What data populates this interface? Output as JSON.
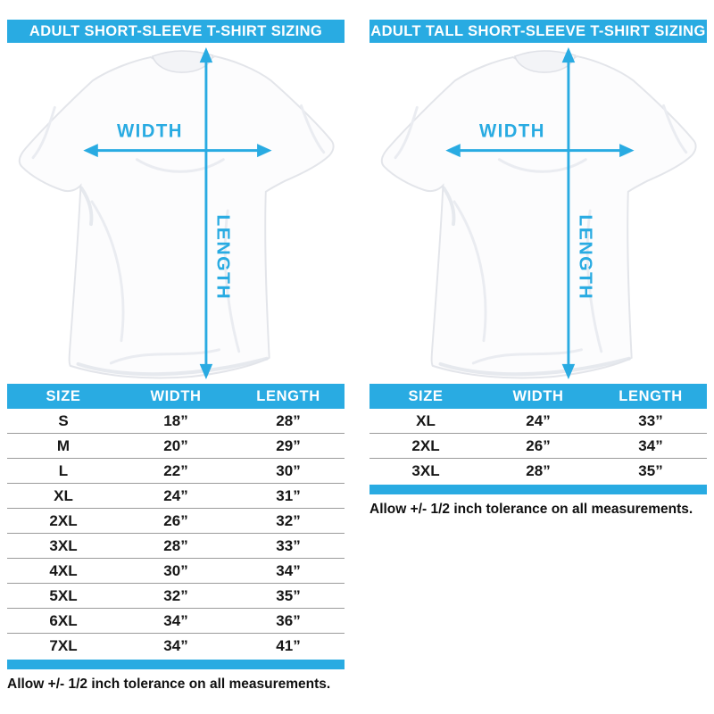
{
  "page": {
    "accent_blue": "#29abe2",
    "background": "#ffffff"
  },
  "panels": [
    {
      "title": "ADULT SHORT-SLEEVE T-SHIRT SIZING",
      "diagram": {
        "width_label": "WIDTH",
        "length_label": "LENGTH"
      },
      "table": {
        "columns": [
          "SIZE",
          "WIDTH",
          "LENGTH"
        ],
        "rows": [
          [
            "S",
            "18”",
            "28”"
          ],
          [
            "M",
            "20”",
            "29”"
          ],
          [
            "L",
            "22”",
            "30”"
          ],
          [
            "XL",
            "24”",
            "31”"
          ],
          [
            "2XL",
            "26”",
            "32”"
          ],
          [
            "3XL",
            "28”",
            "33”"
          ],
          [
            "4XL",
            "30”",
            "34”"
          ],
          [
            "5XL",
            "32”",
            "35”"
          ],
          [
            "6XL",
            "34”",
            "36”"
          ],
          [
            "7XL",
            "34”",
            "41”"
          ]
        ]
      },
      "tolerance_note": "Allow +/- 1/2 inch tolerance on all measurements."
    },
    {
      "title": "ADULT TALL SHORT-SLEEVE T-SHIRT SIZING",
      "diagram": {
        "width_label": "WIDTH",
        "length_label": "LENGTH"
      },
      "table": {
        "columns": [
          "SIZE",
          "WIDTH",
          "LENGTH"
        ],
        "rows": [
          [
            "XL",
            "24”",
            "33”"
          ],
          [
            "2XL",
            "26”",
            "34”"
          ],
          [
            "3XL",
            "28”",
            "35”"
          ]
        ]
      },
      "tolerance_note": "Allow +/- 1/2 inch tolerance on all measurements."
    }
  ]
}
